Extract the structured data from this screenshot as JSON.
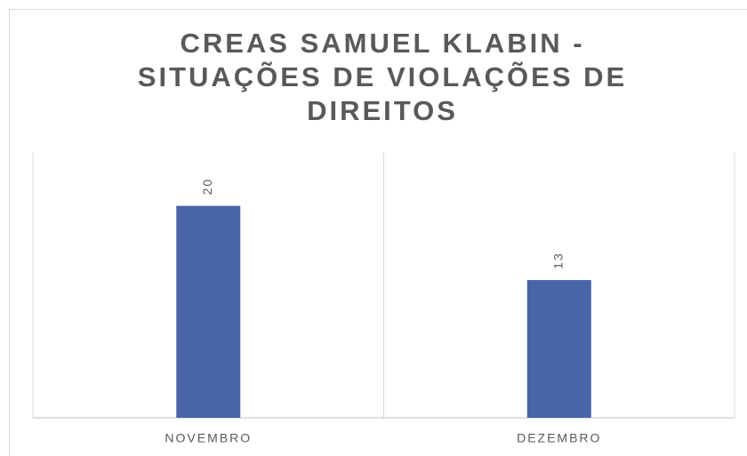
{
  "chart_data": {
    "type": "bar",
    "title": "CREAS SAMUEL KLABIN - SITUAÇÕES DE VIOLAÇÕES DE DIREITOS",
    "categories": [
      "NOVEMBRO",
      "DEZEMBRO"
    ],
    "values": [
      20,
      13
    ],
    "color": "#4a64a8",
    "ylim": [
      0,
      25
    ]
  }
}
